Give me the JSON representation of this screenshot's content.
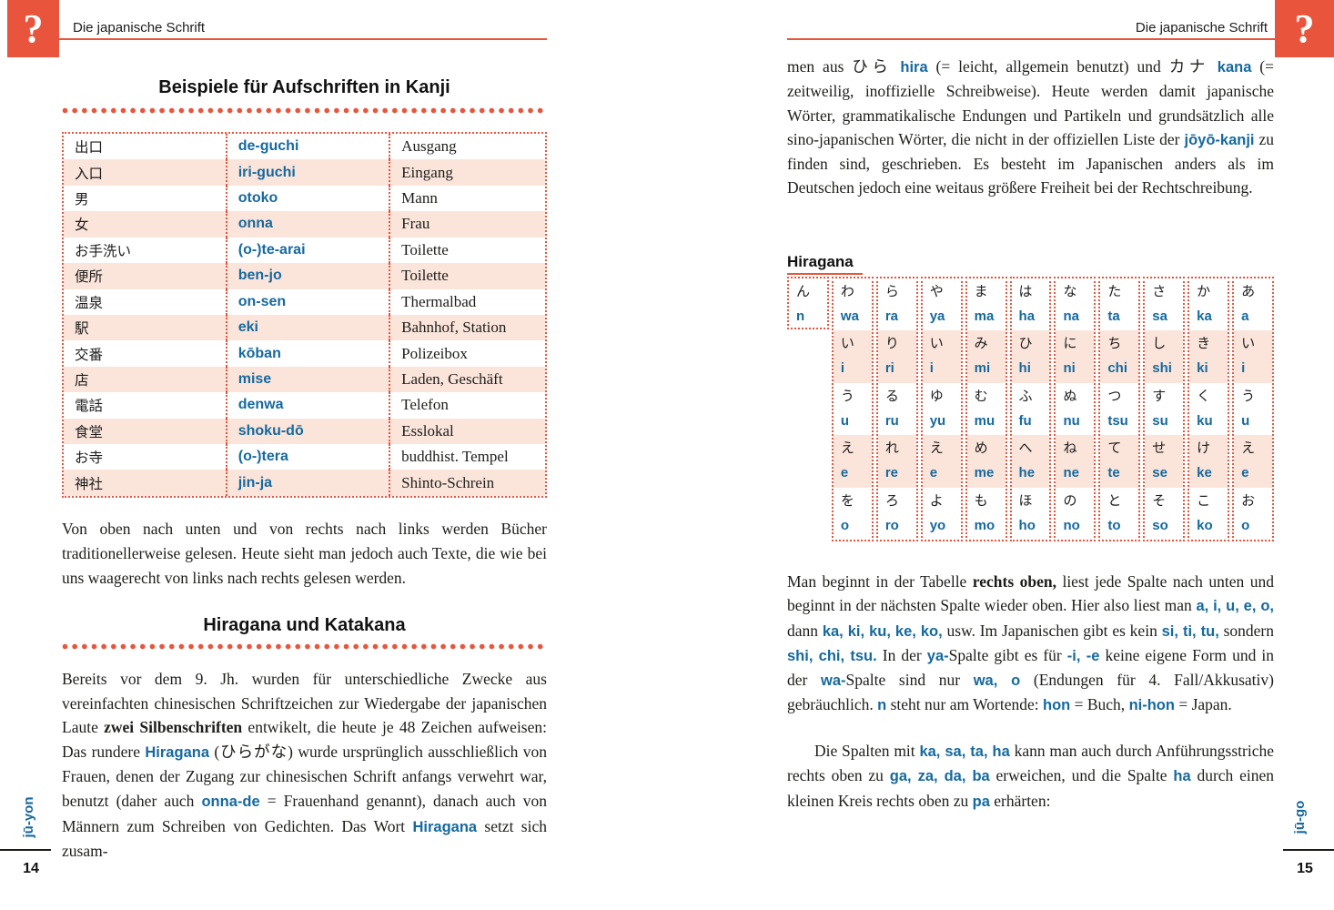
{
  "accent": {
    "red": "#E8553C",
    "blue": "#16699E",
    "row_pink": "#FBE5DB"
  },
  "left_page": {
    "corner_symbol": "?",
    "header": "Die japanische Schrift",
    "section_title": "Beispiele für Aufschriften in Kanji",
    "kanji_table": {
      "rows": [
        {
          "kanji": "出口",
          "romaji": "de-guchi",
          "german": "Ausgang"
        },
        {
          "kanji": "入口",
          "romaji": "iri-guchi",
          "german": "Eingang"
        },
        {
          "kanji": "男",
          "romaji": "otoko",
          "german": "Mann"
        },
        {
          "kanji": "女",
          "romaji": "onna",
          "german": "Frau"
        },
        {
          "kanji": "お手洗い",
          "romaji": "(o-)te-arai",
          "german": "Toilette"
        },
        {
          "kanji": "便所",
          "romaji": "ben-jo",
          "german": "Toilette"
        },
        {
          "kanji": "温泉",
          "romaji": "on-sen",
          "german": "Thermalbad"
        },
        {
          "kanji": "駅",
          "romaji": "eki",
          "german": "Bahnhof, Station"
        },
        {
          "kanji": "交番",
          "romaji": "kōban",
          "german": "Polizeibox"
        },
        {
          "kanji": "店",
          "romaji": "mise",
          "german": "Laden, Geschäft"
        },
        {
          "kanji": "電話",
          "romaji": "denwa",
          "german": "Telefon"
        },
        {
          "kanji": "食堂",
          "romaji": "shoku-dō",
          "german": "Esslokal"
        },
        {
          "kanji": "お寺",
          "romaji": "(o-)tera",
          "german": "buddhist. Tempel"
        },
        {
          "kanji": "神社",
          "romaji": "jin-ja",
          "german": "Shinto-Schrein"
        }
      ]
    },
    "paragraph_reading": "Von oben nach unten und von rechts nach links werden Bücher traditionellerweise gelesen. Heute sieht man jedoch auch Texte, die wie bei uns waagerecht von links nach rechts gelesen werden.",
    "section_title2": "Hiragana und Katakana",
    "paragraph_history_runs": [
      {
        "t": "Bereits vor dem 9. Jh. wurden für unterschiedliche Zwecke aus vereinfachten chinesischen Schriftzeichen zur Wiedergabe der japanischen Laute ",
        "s": "n"
      },
      {
        "t": "zwei Silbenschriften",
        "s": "b"
      },
      {
        "t": " entwikelt, die heute je 48 Zeichen aufweisen: Das rundere ",
        "s": "n"
      },
      {
        "t": "Hiragana",
        "s": "bl"
      },
      {
        "t": " (ひらがな) wurde ursprünglich ausschließlich von Frauen, denen der Zugang zur chinesischen Schrift anfangs verwehrt war, benutzt (daher auch ",
        "s": "n"
      },
      {
        "t": "onna-de",
        "s": "bl"
      },
      {
        "t": " = Frauenhand genannt), danach auch von Männern zum Schreiben von Gedichten. Das Wort ",
        "s": "n"
      },
      {
        "t": "Hiragana",
        "s": "bl"
      },
      {
        "t": " setzt sich zusam-",
        "s": "n"
      }
    ],
    "margin_label": "jū-yon",
    "page_number": "14"
  },
  "right_page": {
    "corner_symbol": "?",
    "header": "Die japanische Schrift",
    "paragraph_top_runs": [
      {
        "t": "men aus ひら ",
        "s": "n"
      },
      {
        "t": "hira",
        "s": "bl"
      },
      {
        "t": " (= leicht, allgemein benutzt) und カナ ",
        "s": "n"
      },
      {
        "t": "kana",
        "s": "bl"
      },
      {
        "t": " (= zeitweilig, inoffizielle Schreibweise). Heute werden damit japanische Wörter, grammatikalische Endungen und Partikeln und grundsätzlich alle sino-japanischen Wörter, die nicht in der offiziellen Liste der ",
        "s": "n"
      },
      {
        "t": "jōyō-kanji",
        "s": "bl"
      },
      {
        "t": " zu finden sind, geschrieben. Es besteht im Japanischen anders als im Deutschen jedoch eine weitaus größere Freiheit bei der Rechtschreibung.",
        "s": "n"
      }
    ],
    "hiragana_label": "Hiragana",
    "hiragana_table": {
      "columns": [
        {
          "name": "n",
          "cells": [
            {
              "kana": "ん",
              "romaji": "n"
            }
          ]
        },
        {
          "name": "wa",
          "cells": [
            {
              "kana": "わ",
              "romaji": "wa"
            },
            {
              "kana": "い",
              "romaji": "i"
            },
            {
              "kana": "う",
              "romaji": "u"
            },
            {
              "kana": "え",
              "romaji": "e"
            },
            {
              "kana": "を",
              "romaji": "o"
            }
          ]
        },
        {
          "name": "ra",
          "cells": [
            {
              "kana": "ら",
              "romaji": "ra"
            },
            {
              "kana": "り",
              "romaji": "ri"
            },
            {
              "kana": "る",
              "romaji": "ru"
            },
            {
              "kana": "れ",
              "romaji": "re"
            },
            {
              "kana": "ろ",
              "romaji": "ro"
            }
          ]
        },
        {
          "name": "ya",
          "cells": [
            {
              "kana": "や",
              "romaji": "ya"
            },
            {
              "kana": "い",
              "romaji": "i"
            },
            {
              "kana": "ゆ",
              "romaji": "yu"
            },
            {
              "kana": "え",
              "romaji": "e"
            },
            {
              "kana": "よ",
              "romaji": "yo"
            }
          ]
        },
        {
          "name": "ma",
          "cells": [
            {
              "kana": "ま",
              "romaji": "ma"
            },
            {
              "kana": "み",
              "romaji": "mi"
            },
            {
              "kana": "む",
              "romaji": "mu"
            },
            {
              "kana": "め",
              "romaji": "me"
            },
            {
              "kana": "も",
              "romaji": "mo"
            }
          ]
        },
        {
          "name": "ha",
          "cells": [
            {
              "kana": "は",
              "romaji": "ha"
            },
            {
              "kana": "ひ",
              "romaji": "hi"
            },
            {
              "kana": "ふ",
              "romaji": "fu"
            },
            {
              "kana": "へ",
              "romaji": "he"
            },
            {
              "kana": "ほ",
              "romaji": "ho"
            }
          ]
        },
        {
          "name": "na",
          "cells": [
            {
              "kana": "な",
              "romaji": "na"
            },
            {
              "kana": "に",
              "romaji": "ni"
            },
            {
              "kana": "ぬ",
              "romaji": "nu"
            },
            {
              "kana": "ね",
              "romaji": "ne"
            },
            {
              "kana": "の",
              "romaji": "no"
            }
          ]
        },
        {
          "name": "ta",
          "cells": [
            {
              "kana": "た",
              "romaji": "ta"
            },
            {
              "kana": "ち",
              "romaji": "chi"
            },
            {
              "kana": "つ",
              "romaji": "tsu"
            },
            {
              "kana": "て",
              "romaji": "te"
            },
            {
              "kana": "と",
              "romaji": "to"
            }
          ]
        },
        {
          "name": "sa",
          "cells": [
            {
              "kana": "さ",
              "romaji": "sa"
            },
            {
              "kana": "し",
              "romaji": "shi"
            },
            {
              "kana": "す",
              "romaji": "su"
            },
            {
              "kana": "せ",
              "romaji": "se"
            },
            {
              "kana": "そ",
              "romaji": "so"
            }
          ]
        },
        {
          "name": "ka",
          "cells": [
            {
              "kana": "か",
              "romaji": "ka"
            },
            {
              "kana": "き",
              "romaji": "ki"
            },
            {
              "kana": "く",
              "romaji": "ku"
            },
            {
              "kana": "け",
              "romaji": "ke"
            },
            {
              "kana": "こ",
              "romaji": "ko"
            }
          ]
        },
        {
          "name": "a",
          "cells": [
            {
              "kana": "あ",
              "romaji": "a"
            },
            {
              "kana": "い",
              "romaji": "i"
            },
            {
              "kana": "う",
              "romaji": "u"
            },
            {
              "kana": "え",
              "romaji": "e"
            },
            {
              "kana": "お",
              "romaji": "o"
            }
          ]
        }
      ]
    },
    "paragraph_table_runs": [
      {
        "t": "Man beginnt in der Tabelle ",
        "s": "n"
      },
      {
        "t": "rechts oben,",
        "s": "b"
      },
      {
        "t": " liest jede Spalte nach unten und beginnt in der nächsten Spalte wieder oben. Hier also liest man ",
        "s": "n"
      },
      {
        "t": "a, i, u, e, o,",
        "s": "bl"
      },
      {
        "t": " dann ",
        "s": "n"
      },
      {
        "t": "ka, ki, ku, ke, ko,",
        "s": "bl"
      },
      {
        "t": " usw. Im Japanischen gibt es kein ",
        "s": "n"
      },
      {
        "t": "si, ti, tu,",
        "s": "bl"
      },
      {
        "t": " sondern ",
        "s": "n"
      },
      {
        "t": "shi, chi, tsu.",
        "s": "bl"
      },
      {
        "t": " In der ",
        "s": "n"
      },
      {
        "t": "ya-",
        "s": "bl"
      },
      {
        "t": "Spalte gibt es für ",
        "s": "n"
      },
      {
        "t": "-i, -e",
        "s": "bl"
      },
      {
        "t": " keine eigene Form und in der ",
        "s": "n"
      },
      {
        "t": "wa-",
        "s": "bl"
      },
      {
        "t": "Spalte sind nur ",
        "s": "n"
      },
      {
        "t": "wa, o",
        "s": "bl"
      },
      {
        "t": " (Endungen für 4. Fall/Akkusativ) gebräuchlich. ",
        "s": "n"
      },
      {
        "t": "n",
        "s": "bl"
      },
      {
        "t": " steht nur am Wortende: ",
        "s": "n"
      },
      {
        "t": "hon",
        "s": "bl"
      },
      {
        "t": " = Buch, ",
        "s": "n"
      },
      {
        "t": "ni-hon",
        "s": "bl"
      },
      {
        "t": " = Japan.",
        "s": "n"
      }
    ],
    "paragraph_spalten_runs": [
      {
        "t": "Die Spalten mit ",
        "s": "n"
      },
      {
        "t": "ka, sa, ta, ha",
        "s": "bl"
      },
      {
        "t": " kann man auch durch Anführungsstriche rechts oben zu ",
        "s": "n"
      },
      {
        "t": "ga, za, da, ba",
        "s": "bl"
      },
      {
        "t": " erweichen, und die Spalte ",
        "s": "n"
      },
      {
        "t": "ha",
        "s": "bl"
      },
      {
        "t": " durch einen kleinen Kreis rechts oben zu ",
        "s": "n"
      },
      {
        "t": "pa",
        "s": "bl"
      },
      {
        "t": " erhärten:",
        "s": "n"
      }
    ],
    "margin_label": "jū-go",
    "page_number": "15"
  }
}
